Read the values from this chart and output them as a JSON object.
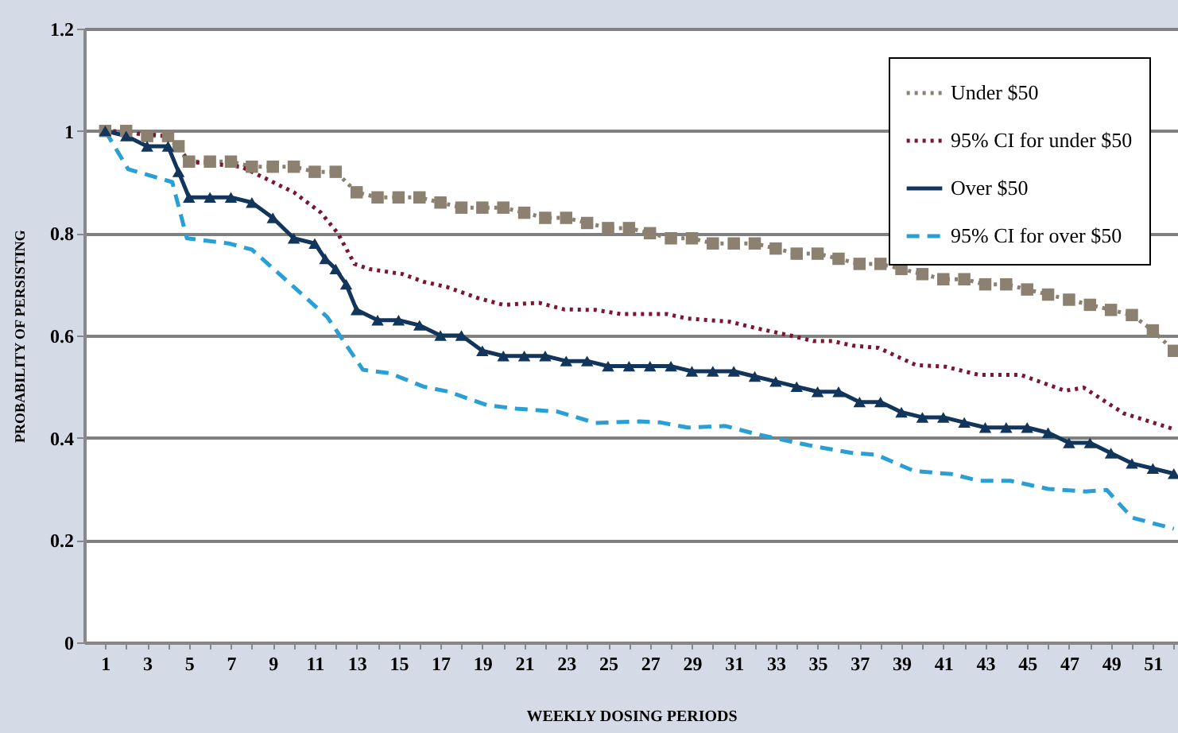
{
  "chart_data": {
    "type": "line",
    "xlabel": "WEEKLY DOSING PERIODS",
    "ylabel": "PROBABILITY OF PERSISTING",
    "xlim": [
      0,
      52.2
    ],
    "ylim": [
      0,
      1.2
    ],
    "xticks": [
      1,
      {
        "value": 2,
        "label": null
      },
      3,
      {
        "value": 4,
        "label": null
      },
      5,
      {
        "value": 6,
        "label": null
      },
      7,
      {
        "value": 8,
        "label": null
      },
      9,
      {
        "value": 10,
        "label": null
      },
      11,
      {
        "value": 12,
        "label": null
      },
      13,
      {
        "value": 14,
        "label": null
      },
      15,
      {
        "value": 16,
        "label": null
      },
      17,
      {
        "value": 18,
        "label": null
      },
      19,
      {
        "value": 20,
        "label": null
      },
      21,
      {
        "value": 22,
        "label": null
      },
      23,
      {
        "value": 24,
        "label": null
      },
      25,
      {
        "value": 26,
        "label": null
      },
      27,
      {
        "value": 28,
        "label": null
      },
      29,
      {
        "value": 30,
        "label": null
      },
      31,
      {
        "value": 32,
        "label": null
      },
      33,
      {
        "value": 34,
        "label": null
      },
      35,
      {
        "value": 36,
        "label": null
      },
      37,
      {
        "value": 38,
        "label": null
      },
      39,
      {
        "value": 40,
        "label": null
      },
      41,
      {
        "value": 42,
        "label": null
      },
      43,
      {
        "value": 44,
        "label": null
      },
      45,
      {
        "value": 46,
        "label": null
      },
      47,
      {
        "value": 48,
        "label": null
      },
      49,
      {
        "value": 50,
        "label": null
      },
      51,
      {
        "value": 52,
        "label": null
      }
    ],
    "yticks": [
      0,
      0.2,
      0.4,
      0.6,
      0.8,
      1,
      1.2
    ],
    "grid": "y",
    "legend": "top right",
    "series": [
      {
        "name": "Under $50",
        "color": "#8c8070",
        "line_style": "dotted",
        "marker": "square",
        "x": [
          1,
          2,
          3,
          4,
          4.5,
          5,
          6,
          7,
          8,
          9,
          10,
          11,
          12,
          13,
          14,
          15,
          16,
          17,
          18,
          19,
          20,
          21,
          22,
          23,
          24,
          25,
          26,
          27,
          28,
          29,
          30,
          31,
          32,
          33,
          34,
          35,
          36,
          37,
          38,
          39,
          40,
          41,
          42,
          43,
          44,
          45,
          46,
          47,
          48,
          49,
          50,
          51,
          52
        ],
        "values": [
          1.0,
          1.0,
          0.99,
          0.99,
          0.97,
          0.94,
          0.94,
          0.94,
          0.93,
          0.93,
          0.93,
          0.92,
          0.92,
          0.88,
          0.87,
          0.87,
          0.87,
          0.86,
          0.85,
          0.85,
          0.85,
          0.84,
          0.83,
          0.83,
          0.82,
          0.81,
          0.81,
          0.8,
          0.79,
          0.79,
          0.78,
          0.78,
          0.78,
          0.77,
          0.76,
          0.76,
          0.75,
          0.74,
          0.74,
          0.73,
          0.72,
          0.71,
          0.71,
          0.7,
          0.7,
          0.69,
          0.68,
          0.67,
          0.66,
          0.65,
          0.64,
          0.61,
          0.57
        ]
      },
      {
        "name": "95% CI for under $50",
        "color": "#7b1530",
        "line_style": "dotted",
        "marker": "none",
        "x": [
          1,
          4,
          5,
          7.5,
          10,
          11.3,
          12.1,
          12.9,
          13.6,
          15.2,
          16.2,
          17.3,
          18.8,
          20,
          21.7,
          22.9,
          24.4,
          25.6,
          27.8,
          28.8,
          30.8,
          32.1,
          33.7,
          34.8,
          35.7,
          36.7,
          37.9,
          39.7,
          41.1,
          42.7,
          44.7,
          46.8,
          47.7,
          49.6,
          52
        ],
        "values": [
          1.0,
          0.99,
          0.94,
          0.93,
          0.88,
          0.84,
          0.8,
          0.74,
          0.73,
          0.72,
          0.705,
          0.695,
          0.673,
          0.66,
          0.664,
          0.651,
          0.65,
          0.642,
          0.642,
          0.633,
          0.627,
          0.614,
          0.6,
          0.589,
          0.589,
          0.58,
          0.576,
          0.542,
          0.539,
          0.523,
          0.523,
          0.492,
          0.498,
          0.448,
          0.417
        ]
      },
      {
        "name": "Over $50",
        "color": "#12355b",
        "line_style": "solid",
        "marker": "triangle",
        "x": [
          1,
          2,
          3,
          4,
          4.5,
          5,
          6,
          7,
          8,
          9,
          10,
          11,
          11.5,
          12,
          12.5,
          13,
          14,
          15,
          16,
          17,
          18,
          19,
          20,
          21,
          22,
          23,
          24,
          25,
          26,
          27,
          28,
          29,
          30,
          31,
          32,
          33,
          34,
          35,
          36,
          37,
          38,
          39,
          40,
          41,
          42,
          43,
          44,
          45,
          46,
          47,
          48,
          49,
          50,
          51,
          52
        ],
        "values": [
          1.0,
          0.99,
          0.97,
          0.97,
          0.92,
          0.87,
          0.87,
          0.87,
          0.86,
          0.83,
          0.79,
          0.78,
          0.75,
          0.73,
          0.7,
          0.65,
          0.63,
          0.63,
          0.62,
          0.6,
          0.6,
          0.57,
          0.56,
          0.56,
          0.56,
          0.55,
          0.55,
          0.54,
          0.54,
          0.54,
          0.54,
          0.53,
          0.53,
          0.53,
          0.52,
          0.51,
          0.5,
          0.49,
          0.49,
          0.47,
          0.47,
          0.45,
          0.44,
          0.44,
          0.43,
          0.42,
          0.42,
          0.42,
          0.41,
          0.39,
          0.39,
          0.37,
          0.35,
          0.34,
          0.33
        ]
      },
      {
        "name": "95% CI for over $50",
        "color": "#2a9fd6",
        "line_style": "dashed",
        "marker": "none",
        "x": [
          1,
          2.1,
          4.2,
          4.9,
          6.9,
          8,
          10,
          11.6,
          13.3,
          14.6,
          16.2,
          17.4,
          19.2,
          20.6,
          22.6,
          24.4,
          26.5,
          27.5,
          28.8,
          30.6,
          32.1,
          33.8,
          35,
          36.7,
          37.8,
          39.6,
          41.4,
          42.7,
          44.2,
          46,
          47.8,
          48.8,
          50,
          52
        ],
        "values": [
          1.0,
          0.925,
          0.9,
          0.79,
          0.78,
          0.768,
          0.695,
          0.636,
          0.533,
          0.526,
          0.5,
          0.49,
          0.464,
          0.457,
          0.451,
          0.429,
          0.432,
          0.43,
          0.42,
          0.423,
          0.407,
          0.392,
          0.382,
          0.37,
          0.367,
          0.335,
          0.329,
          0.316,
          0.316,
          0.3,
          0.295,
          0.298,
          0.244,
          0.222
        ]
      }
    ]
  }
}
